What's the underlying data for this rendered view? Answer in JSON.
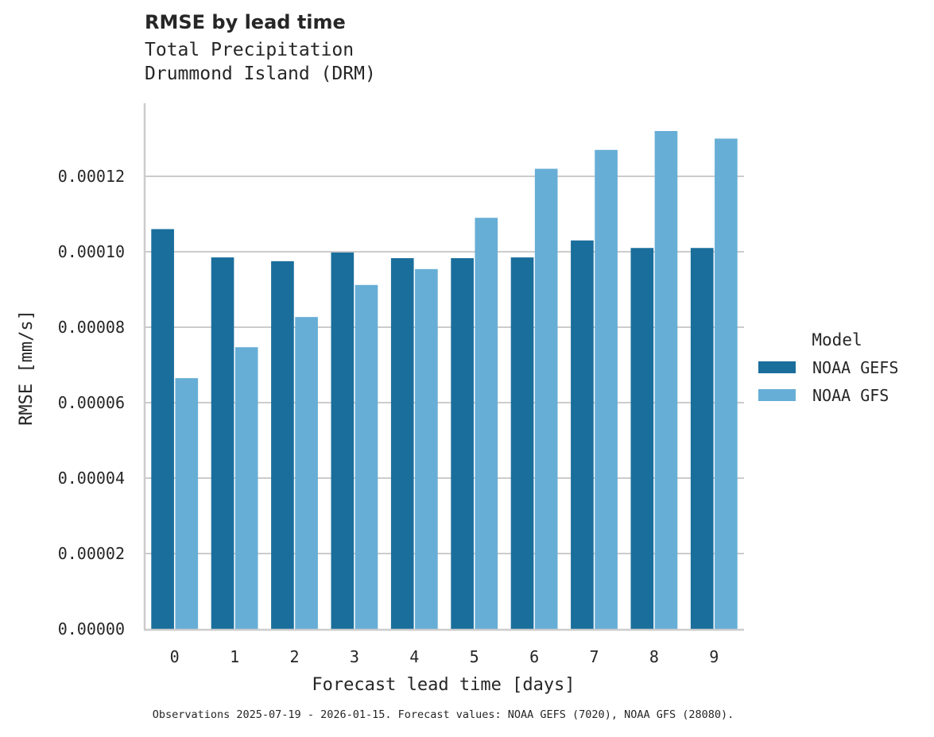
{
  "header": {
    "title": "RMSE by lead time",
    "subtitle_line1": "Total Precipitation",
    "subtitle_line2": "Drummond Island (DRM)"
  },
  "footnote": "Observations 2025-07-19 - 2026-01-15. Forecast values: NOAA GEFS (7020), NOAA GFS (28080).",
  "legend": {
    "title": "Model",
    "items": [
      {
        "label": "NOAA GEFS",
        "color": "#1a6e9c"
      },
      {
        "label": "NOAA GFS",
        "color": "#67aed6"
      }
    ]
  },
  "colors": {
    "gefs": "#1a6e9c",
    "gfs": "#67aed6",
    "grid": "#cccccc",
    "axis": "#cccccc",
    "text": "#262626"
  },
  "chart_data": {
    "type": "bar",
    "title": "RMSE by lead time",
    "subtitle": "Total Precipitation — Drummond Island (DRM)",
    "xlabel": "Forecast lead time [days]",
    "ylabel": "RMSE [mm/s]",
    "categories": [
      "0",
      "1",
      "2",
      "3",
      "4",
      "5",
      "6",
      "7",
      "8",
      "9"
    ],
    "series": [
      {
        "name": "NOAA GEFS",
        "color": "#1a6e9c",
        "values": [
          0.000106,
          9.85e-05,
          9.75e-05,
          9.98e-05,
          9.83e-05,
          9.83e-05,
          9.85e-05,
          0.000103,
          0.000101,
          0.000101
        ]
      },
      {
        "name": "NOAA GFS",
        "color": "#67aed6",
        "values": [
          6.65e-05,
          7.47e-05,
          8.27e-05,
          9.12e-05,
          9.54e-05,
          0.000109,
          0.000122,
          0.000127,
          0.000132,
          0.00013
        ]
      }
    ],
    "yticks": [
      "0.00000",
      "0.00002",
      "0.00004",
      "0.00006",
      "0.00008",
      "0.00010",
      "0.00012"
    ],
    "ytick_values": [
      0,
      2e-05,
      4e-05,
      6e-05,
      8e-05,
      0.0001,
      0.00012
    ],
    "ylim": [
      0,
      0.00014
    ],
    "grid": "y",
    "legend_position": "right"
  }
}
